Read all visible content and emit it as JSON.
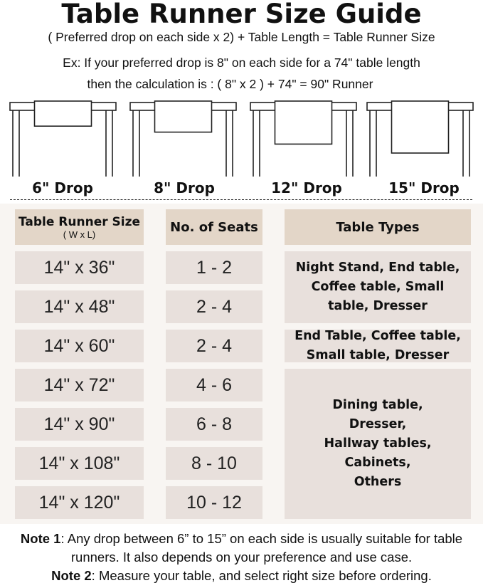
{
  "title": "Table Runner Size Guide",
  "formula": "( Preferred drop on each side x 2) + Table Length = Table Runner Size",
  "example_line1": "Ex: If your preferred drop is 8\" on each side for a 74\" table length",
  "example_line2": "then the calculation is : ( 8\" x 2 ) + 74\" = 90\" Runner",
  "drops": [
    {
      "label": "6\" Drop",
      "inches": 6
    },
    {
      "label": "8\" Drop",
      "inches": 8
    },
    {
      "label": "12\" Drop",
      "inches": 12
    },
    {
      "label": "15\" Drop",
      "inches": 15
    }
  ],
  "table": {
    "headers": {
      "size": "Table Runner Size",
      "size_sub": "( W x L)",
      "seats": "No. of Seats",
      "types": "Table Types"
    },
    "rows": [
      {
        "size": "14\" x 36\"",
        "seats": "1 - 2"
      },
      {
        "size": "14\" x 48\"",
        "seats": "2 - 4"
      },
      {
        "size": "14\" x 60\"",
        "seats": "2 - 4"
      },
      {
        "size": "14\" x 72\"",
        "seats": "4 - 6"
      },
      {
        "size": "14\" x 90\"",
        "seats": "6 - 8"
      },
      {
        "size": "14\" x 108\"",
        "seats": "8 - 10"
      },
      {
        "size": "14\" x 120\"",
        "seats": "10 - 12"
      }
    ],
    "type_groups": [
      {
        "text": "Night Stand, End table, Coffee table, Small table, Dresser",
        "rows": "1-2"
      },
      {
        "text": "End Table, Coffee table, Small table, Dresser",
        "rows": "3"
      },
      {
        "text": "Dining table, Dresser, Hallway tables, Cabinets, Others",
        "rows": "4-7"
      }
    ]
  },
  "notes": {
    "note1_label": "Note 1",
    "note1_text": ": Any drop between 6” to 15” on each side is usually suitable for table runners. It also depends on your preference and use case.",
    "note2_label": "Note 2",
    "note2_text": ": Measure your table, and select right size before ordering."
  },
  "colors": {
    "header": "#e3d6c8",
    "cell": "#e8e0dc",
    "panel": "#f8f5f2"
  }
}
